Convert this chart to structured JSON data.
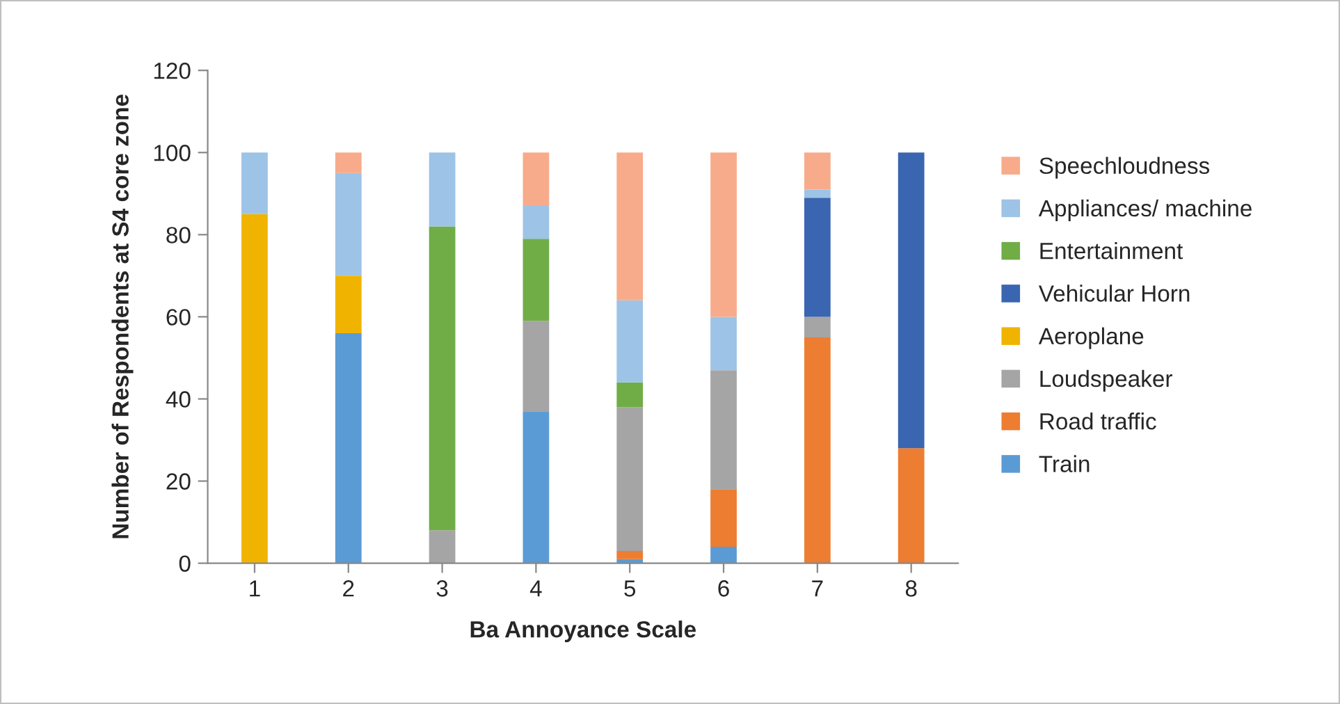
{
  "chart_data": {
    "type": "bar",
    "stacked": true,
    "xlabel": "Ba Annoyance Scale",
    "ylabel": "Number of Respondents at S4 core zone",
    "categories": [
      "1",
      "2",
      "3",
      "4",
      "5",
      "6",
      "7",
      "8"
    ],
    "series": [
      {
        "name": "Train",
        "color": "#5b9bd5",
        "values": [
          0,
          56,
          0,
          37,
          1,
          4,
          0,
          0
        ]
      },
      {
        "name": "Road traffic",
        "color": "#ed7d31",
        "values": [
          0,
          0,
          0,
          0,
          2,
          14,
          55,
          28
        ]
      },
      {
        "name": "Loudspeaker",
        "color": "#a5a5a5",
        "values": [
          0,
          0,
          8,
          22,
          35,
          29,
          5,
          0
        ]
      },
      {
        "name": "Aeroplane",
        "color": "#f0b400",
        "values": [
          85,
          14,
          0,
          0,
          0,
          0,
          0,
          0
        ]
      },
      {
        "name": "Vehicular Horn",
        "color": "#3a65b0",
        "values": [
          0,
          0,
          0,
          0,
          0,
          0,
          29,
          72
        ]
      },
      {
        "name": "Entertainment",
        "color": "#70ad47",
        "values": [
          0,
          0,
          74,
          20,
          6,
          0,
          0,
          0
        ]
      },
      {
        "name": "Appliances/ machine",
        "color": "#9dc3e6",
        "values": [
          15,
          25,
          18,
          8,
          20,
          13,
          2,
          0
        ]
      },
      {
        "name": "Speechloudness",
        "color": "#f8ab8a",
        "values": [
          0,
          5,
          0,
          13,
          36,
          40,
          9,
          0
        ]
      }
    ],
    "ylim": [
      0,
      120
    ],
    "yticks": [
      0,
      20,
      40,
      60,
      80,
      100,
      120
    ],
    "grid": false,
    "legend": "right"
  }
}
